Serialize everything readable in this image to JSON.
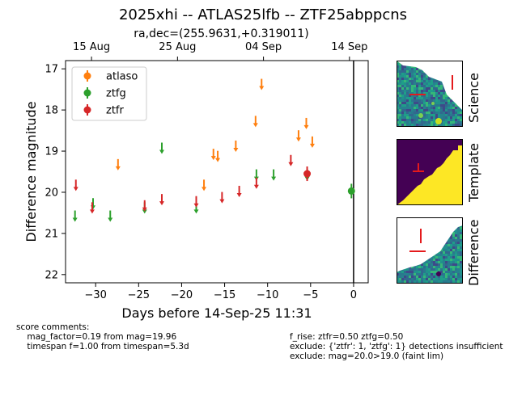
{
  "title": "2025xhi -- ATLAS25lfb -- ZTF25abppcns",
  "subtitle": "ra,dec=(255.9631,+0.319011)",
  "colors": {
    "atlaso": "#ff7f0e",
    "ztfg": "#2ca02c",
    "ztfr": "#d62728"
  },
  "chart_data": {
    "type": "scatter",
    "xlabel": "Days before 14-Sep-25 11:31",
    "ylabel": "Difference magnitude",
    "xlim": [
      -33.5,
      1.7
    ],
    "ylim": [
      22.2,
      16.8
    ],
    "y_inverted": true,
    "xticks": [
      -30,
      -25,
      -20,
      -15,
      -10,
      -5,
      0
    ],
    "xtick_labels": [
      "−30",
      "−25",
      "−20",
      "−15",
      "−10",
      "−5",
      "0"
    ],
    "yticks": [
      17,
      18,
      19,
      20,
      21,
      22
    ],
    "top_axis_ticks": [
      {
        "label": "15 Aug",
        "x": -30.48
      },
      {
        "label": "25 Aug",
        "x": -20.48
      },
      {
        "label": "04 Sep",
        "x": -10.48
      },
      {
        "label": "14 Sep",
        "x": -0.48
      }
    ],
    "vertical_line_x": 0,
    "grid": false,
    "legend_position": "upper-left",
    "series": [
      {
        "name": "atlaso",
        "detections": [],
        "upper_limits": [
          {
            "x": -27.4,
            "y": 19.35
          },
          {
            "x": -17.4,
            "y": 19.85
          },
          {
            "x": -16.3,
            "y": 19.1
          },
          {
            "x": -15.8,
            "y": 19.15
          },
          {
            "x": -13.7,
            "y": 18.9
          },
          {
            "x": -11.4,
            "y": 18.3
          },
          {
            "x": -10.7,
            "y": 17.4
          },
          {
            "x": -6.4,
            "y": 18.65
          },
          {
            "x": -5.5,
            "y": 18.35
          },
          {
            "x": -4.8,
            "y": 18.8
          }
        ]
      },
      {
        "name": "ztfg",
        "detections": [
          {
            "x": -0.25,
            "y": 19.97
          }
        ],
        "upper_limits": [
          {
            "x": -32.4,
            "y": 20.6
          },
          {
            "x": -30.3,
            "y": 20.3
          },
          {
            "x": -28.3,
            "y": 20.6
          },
          {
            "x": -24.3,
            "y": 20.4
          },
          {
            "x": -22.3,
            "y": 18.95
          },
          {
            "x": -18.3,
            "y": 20.4
          },
          {
            "x": -11.3,
            "y": 19.6
          },
          {
            "x": -9.3,
            "y": 19.6
          },
          {
            "x": -5.4,
            "y": 19.6
          }
        ]
      },
      {
        "name": "ztfr",
        "detections": [
          {
            "x": -5.4,
            "y": 19.55
          }
        ],
        "upper_limits": [
          {
            "x": -32.3,
            "y": 19.85
          },
          {
            "x": -30.4,
            "y": 20.4
          },
          {
            "x": -24.3,
            "y": 20.35
          },
          {
            "x": -22.3,
            "y": 20.2
          },
          {
            "x": -18.3,
            "y": 20.25
          },
          {
            "x": -15.3,
            "y": 20.15
          },
          {
            "x": -13.3,
            "y": 20.0
          },
          {
            "x": -11.3,
            "y": 19.8
          },
          {
            "x": -7.3,
            "y": 19.25
          }
        ]
      }
    ]
  },
  "stamps": [
    {
      "label": "Science"
    },
    {
      "label": "Template"
    },
    {
      "label": "Difference"
    }
  ],
  "comments": {
    "left": "score comments:\n    mag_factor=0.19 from mag=19.96\n    timespan f=1.00 from timespan=5.3d",
    "right": "f_rise: ztfr=0.50 ztfg=0.50\nexclude: {'ztfr': 1, 'ztfg': 1} detections insufficient\nexclude: mag=20.0>19.0 (faint lim)"
  }
}
